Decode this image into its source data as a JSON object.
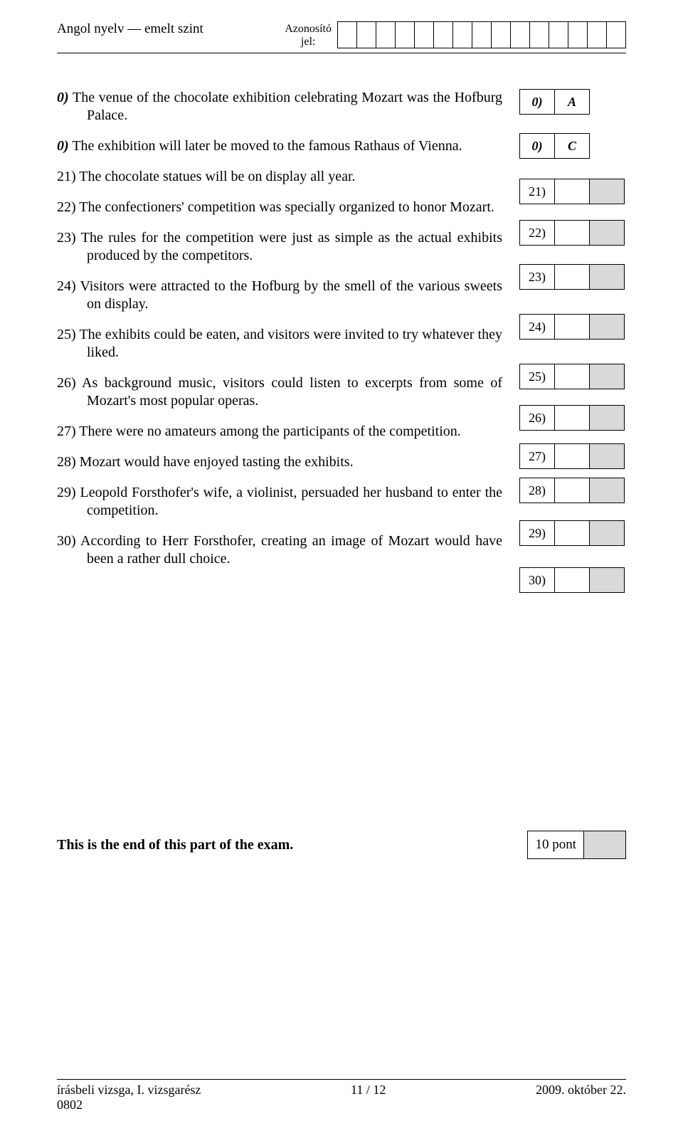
{
  "header": {
    "left": "Angol nyelv — emelt szint",
    "center_label": "Azonosító\njel:",
    "id_cell_count": 15
  },
  "statements": [
    {
      "num": "0)",
      "text": "The venue of the chocolate exhibition celebrating Mozart was the Hofburg Palace.",
      "italic": true,
      "indent_body": true
    },
    {
      "num": "0)",
      "text": "The exhibition will later be moved to the famous Rathaus of Vienna.",
      "italic": true,
      "indent_body": false
    },
    {
      "num": "21)",
      "text": "The chocolate statues will be on display all year.",
      "italic": false,
      "indent_body": false
    },
    {
      "num": "22)",
      "text": "The confectioners' competition was specially organized to honor Mozart.",
      "italic": false,
      "indent_body": true
    },
    {
      "num": "23)",
      "text": "The rules for the competition were just as simple as the actual exhibits produced by the competitors.",
      "italic": false,
      "indent_body": true
    },
    {
      "num": "24)",
      "text": "Visitors were attracted to the Hofburg by the smell of the various sweets on display.",
      "italic": false,
      "indent_body": true
    },
    {
      "num": "25)",
      "text": "The exhibits could be eaten, and visitors were invited to try whatever they liked.",
      "italic": false,
      "indent_body": true
    },
    {
      "num": "26)",
      "text": "As background music, visitors could listen to excerpts from some of Mozart's most popular operas.",
      "italic": false,
      "indent_body": true
    },
    {
      "num": "27)",
      "text": "There were no amateurs among the participants of the competition.",
      "italic": false,
      "indent_body": false
    },
    {
      "num": "28)",
      "text": "Mozart would have enjoyed tasting the exhibits.",
      "italic": false,
      "indent_body": false
    },
    {
      "num": "29)",
      "text": "Leopold Forsthofer's wife, a violinist, persuaded her husband to enter the competition.",
      "italic": false,
      "indent_body": true
    },
    {
      "num": "30)",
      "text": "According to Herr Forsthofer, creating an image of Mozart would have been a rather dull choice.",
      "italic": false,
      "indent_body": true
    }
  ],
  "answers": [
    {
      "label": "0)",
      "value": "A",
      "shaded_value": false,
      "shaded_extra": false,
      "italic": true,
      "extra_cell": false
    },
    {
      "label": "0)",
      "value": "C",
      "shaded_value": false,
      "shaded_extra": false,
      "italic": true,
      "extra_cell": false
    },
    {
      "label": "21)",
      "value": "",
      "shaded_value": false,
      "shaded_extra": true,
      "italic": false,
      "extra_cell": true
    },
    {
      "label": "22)",
      "value": "",
      "shaded_value": false,
      "shaded_extra": true,
      "italic": false,
      "extra_cell": true
    },
    {
      "label": "23)",
      "value": "",
      "shaded_value": false,
      "shaded_extra": true,
      "italic": false,
      "extra_cell": true
    },
    {
      "label": "24)",
      "value": "",
      "shaded_value": false,
      "shaded_extra": true,
      "italic": false,
      "extra_cell": true
    },
    {
      "label": "25)",
      "value": "",
      "shaded_value": false,
      "shaded_extra": true,
      "italic": false,
      "extra_cell": true
    },
    {
      "label": "26)",
      "value": "",
      "shaded_value": false,
      "shaded_extra": true,
      "italic": false,
      "extra_cell": true
    },
    {
      "label": "27)",
      "value": "",
      "shaded_value": false,
      "shaded_extra": true,
      "italic": false,
      "extra_cell": true
    },
    {
      "label": "28)",
      "value": "",
      "shaded_value": false,
      "shaded_extra": true,
      "italic": false,
      "extra_cell": true
    },
    {
      "label": "29)",
      "value": "",
      "shaded_value": false,
      "shaded_extra": true,
      "italic": false,
      "extra_cell": true
    },
    {
      "label": "30)",
      "value": "",
      "shaded_value": false,
      "shaded_extra": true,
      "italic": false,
      "extra_cell": true
    }
  ],
  "answer_row_margins": [
    26,
    28,
    22,
    26,
    34,
    34,
    22,
    18,
    12,
    24,
    30,
    14
  ],
  "end": {
    "text": "This is the end of this part of the exam.",
    "points_label": "10 pont"
  },
  "footer": {
    "left_line1": "írásbeli vizsga, I. vizsgarész",
    "left_line2": "0802",
    "center": "11 / 12",
    "right": "2009. október 22."
  },
  "colors": {
    "shaded": "#d9d9d9",
    "text": "#000000",
    "bg": "#ffffff"
  }
}
